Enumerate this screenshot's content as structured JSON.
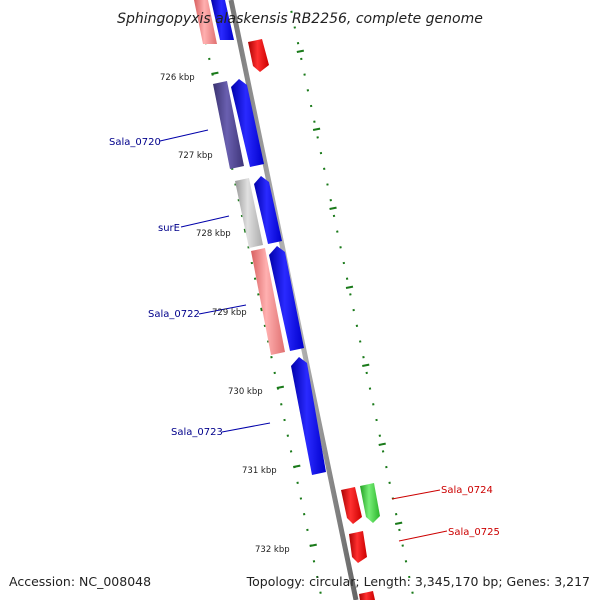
{
  "title": "Sphingopyxis alaskensis RB2256, complete genome",
  "accession": "Accession: NC_008048",
  "summary": "Topology: circular; Length: 3,345,170 bp; Genes: 3,217",
  "colors": {
    "backbone": "#888888",
    "tick": "#1a7a1a",
    "blue_gene": "#0000ee",
    "slate_gene": "#4a3f8a",
    "gray_gene": "#bbbbbb",
    "pink_gene": "#f08080",
    "red_gene": "#ee0000",
    "green_gene": "#33cc33",
    "label_blue": "#00008b",
    "label_red": "#cc0000"
  },
  "kbp_markers": [
    "726 kbp",
    "727 kbp",
    "728 kbp",
    "729 kbp",
    "730 kbp",
    "731 kbp",
    "732 kbp"
  ],
  "gene_labels": [
    {
      "text": "Sala_0720",
      "color": "blue"
    },
    {
      "text": "surE",
      "color": "blue"
    },
    {
      "text": "Sala_0722",
      "color": "blue"
    },
    {
      "text": "Sala_0723",
      "color": "blue"
    },
    {
      "text": "Sala_0724",
      "color": "red"
    },
    {
      "text": "Sala_0725",
      "color": "red"
    }
  ]
}
